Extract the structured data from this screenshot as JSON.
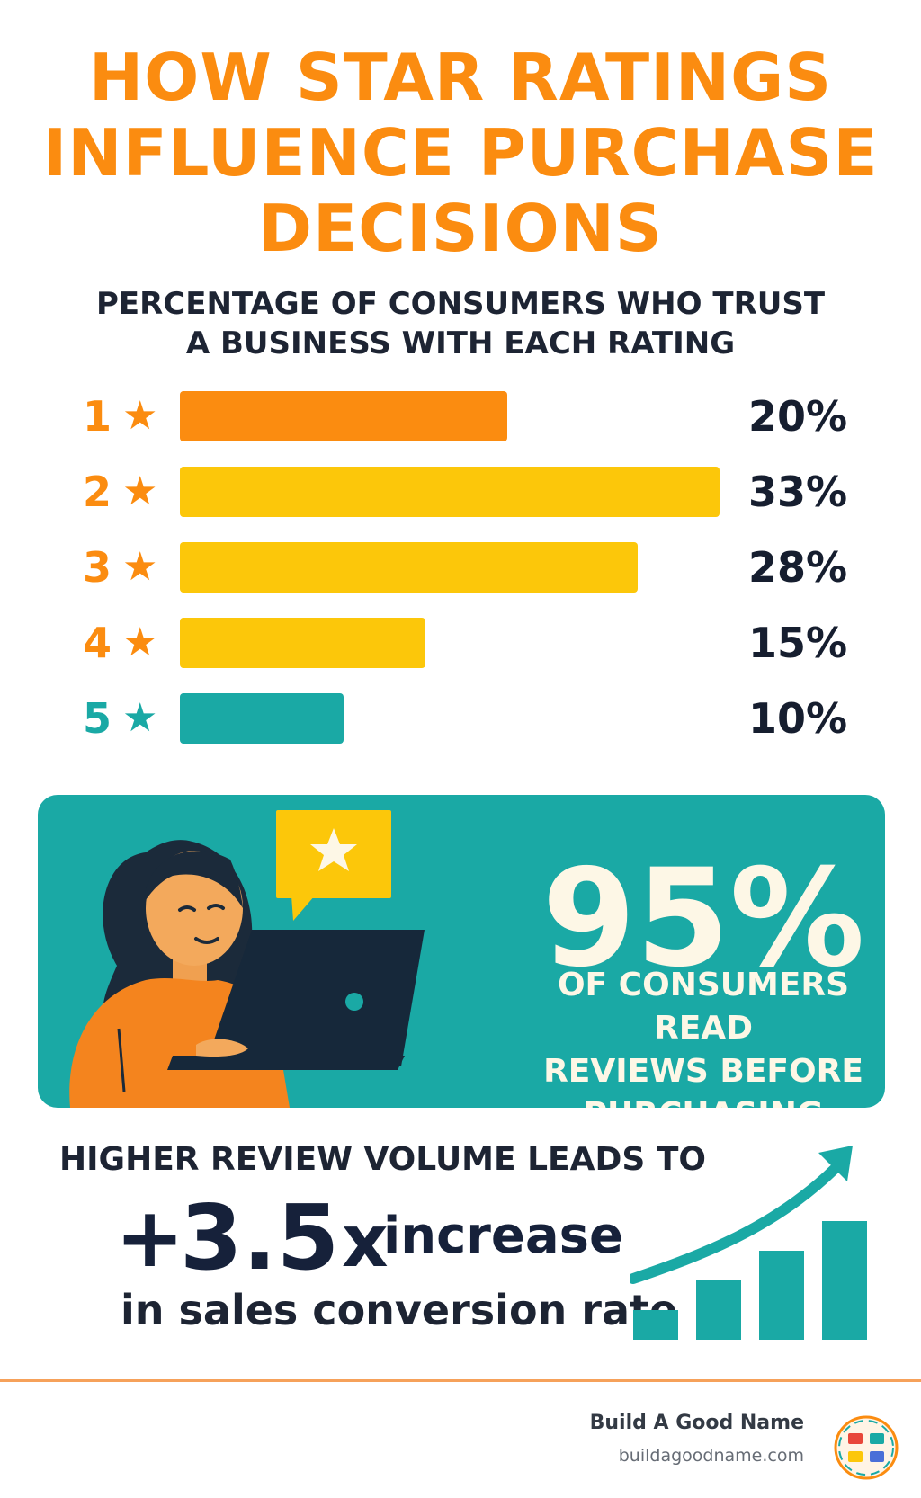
{
  "title_lines": [
    "HOW STAR RATINGS",
    "INFLUENCE PURCHASE",
    "DECISIONS"
  ],
  "subtitle_lines": [
    "PERCENTAGE OF CONSUMERS WHO TRUST",
    "A BUSINESS WITH EACH RATING"
  ],
  "chart_data": {
    "type": "bar",
    "orientation": "horizontal",
    "categories": [
      "1",
      "2",
      "3",
      "4",
      "5"
    ],
    "category_icon": "star-icon",
    "values": [
      20,
      33,
      28,
      15,
      10
    ],
    "value_labels": [
      "20%",
      "33%",
      "28%",
      "15%",
      "10%"
    ],
    "unit": "%",
    "colors": [
      "#fb8c10",
      "#fcc70a",
      "#fcc70a",
      "#fcc70a",
      "#1aa9a5"
    ],
    "label_colors": [
      "#fb8c10",
      "#fb8c10",
      "#fb8c10",
      "#fb8c10",
      "#1aa9a5"
    ]
  },
  "highlight": {
    "big": "95%",
    "text_lines": [
      "OF CONSUMERS READ",
      "REVIEWS BEFORE",
      "PURCHASING"
    ],
    "bg_color": "#1aa9a5"
  },
  "volume": {
    "lead": "HIGHER REVIEW VOLUME LEADS TO",
    "plus": "+",
    "multiplier": "3.5",
    "x": "x",
    "increase": "increase",
    "tail": "in sales conversion rate",
    "growth_chart": {
      "type": "bar",
      "values": [
        1,
        2,
        3,
        4
      ],
      "color": "#1aa9a5",
      "arrow_icon": "upward-trend-arrow-icon"
    }
  },
  "footer": {
    "brand": "Build A Good Name",
    "url": "buildagoodname.com",
    "divider_color": "#f6a15a"
  }
}
